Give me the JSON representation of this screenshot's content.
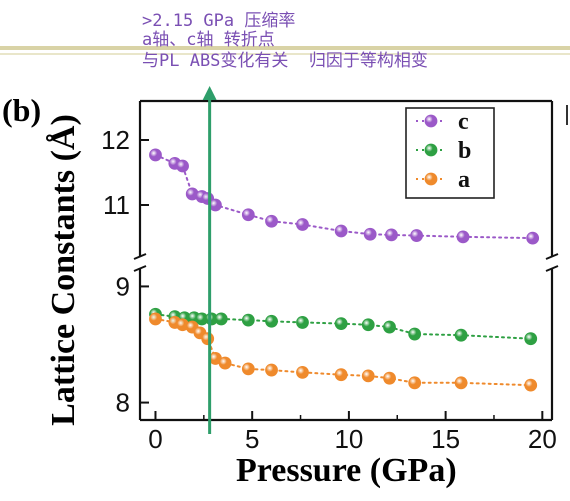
{
  "annotations": [
    ">2.15 GPa 压缩率",
    "a轴、c轴 转折点",
    "与PL ABS变化有关  归因于等构相变"
  ],
  "marker_line": {
    "x": 2.8,
    "color": "#2e9e6a"
  },
  "chart_data": {
    "type": "scatter",
    "panel_label": "(b)",
    "xlabel": "Pressure (GPa)",
    "ylabel": "Lattice Constants (Å)",
    "x_ticks": [
      "0",
      "5",
      "10",
      "15",
      "20"
    ],
    "y_ticks_upper": [
      "11",
      "12"
    ],
    "y_ticks_lower": [
      "8",
      "9"
    ],
    "xlim": [
      -0.8,
      20.5
    ],
    "upper_ylim": [
      10.2,
      12.6
    ],
    "lower_ylim": [
      7.85,
      9.15
    ],
    "axis_break": true,
    "legend_placement": "top-right",
    "series": [
      {
        "name": "c",
        "color": "#9b59c8",
        "axis": "upper",
        "x": [
          0,
          1.0,
          1.4,
          1.9,
          2.4,
          2.7,
          3.1,
          4.8,
          6.0,
          7.6,
          9.6,
          11.1,
          12.2,
          13.5,
          15.9,
          19.5
        ],
        "y": [
          11.77,
          11.64,
          11.6,
          11.17,
          11.13,
          11.1,
          11.0,
          10.85,
          10.75,
          10.7,
          10.6,
          10.55,
          10.54,
          10.53,
          10.51,
          10.49
        ]
      },
      {
        "name": "b",
        "color": "#2ea043",
        "axis": "lower",
        "x": [
          0,
          1.0,
          1.5,
          2.0,
          2.4,
          2.9,
          3.4,
          4.8,
          6.0,
          7.6,
          9.6,
          11.0,
          12.1,
          13.4,
          15.8,
          19.4
        ],
        "y": [
          8.76,
          8.74,
          8.73,
          8.73,
          8.72,
          8.72,
          8.72,
          8.71,
          8.7,
          8.69,
          8.68,
          8.67,
          8.65,
          8.59,
          8.58,
          8.55
        ]
      },
      {
        "name": "a",
        "color": "#ef8a2c",
        "axis": "lower",
        "x": [
          0,
          1.0,
          1.4,
          1.9,
          2.3,
          2.7,
          3.1,
          3.6,
          4.8,
          6.0,
          7.6,
          9.6,
          11.0,
          12.1,
          13.4,
          15.8,
          19.4
        ],
        "y": [
          8.72,
          8.69,
          8.67,
          8.65,
          8.6,
          8.55,
          8.38,
          8.34,
          8.29,
          8.28,
          8.26,
          8.24,
          8.23,
          8.21,
          8.17,
          8.17,
          8.15
        ]
      }
    ]
  }
}
